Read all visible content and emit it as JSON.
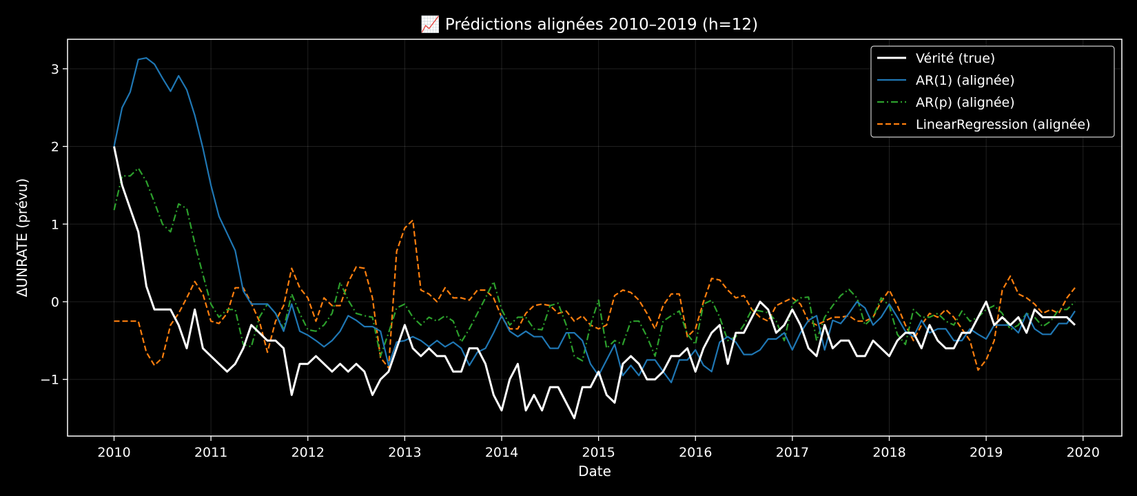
{
  "chart_data": {
    "type": "line",
    "title": "📈 Prédictions alignées 2010–2019 (h=12)",
    "xlabel": "Date",
    "ylabel": "ΔUNRATE (prévu)",
    "xlim": [
      2009.52,
      2020.4
    ],
    "ylim": [
      -1.73,
      3.38
    ],
    "x_ticks": [
      2010,
      2011,
      2012,
      2013,
      2014,
      2015,
      2016,
      2017,
      2018,
      2019,
      2020
    ],
    "y_ticks": [
      -1,
      0,
      1,
      2,
      3
    ],
    "y_tick_labels": [
      "−1",
      "0",
      "1",
      "2",
      "3"
    ],
    "grid": true,
    "legend_position": "top-right",
    "x_start": 2010.0,
    "x_step": 0.08333,
    "series": [
      {
        "name": "Vérité (true)",
        "color": "#ffffff",
        "style": "solid",
        "width": 3,
        "values": [
          2.0,
          1.5,
          1.2,
          0.9,
          0.2,
          -0.1,
          -0.1,
          -0.1,
          -0.3,
          -0.6,
          -0.1,
          -0.6,
          -0.7,
          -0.8,
          -0.9,
          -0.8,
          -0.6,
          -0.3,
          -0.4,
          -0.5,
          -0.5,
          -0.6,
          -1.2,
          -0.8,
          -0.8,
          -0.7,
          -0.8,
          -0.9,
          -0.8,
          -0.9,
          -0.8,
          -0.9,
          -1.2,
          -1.0,
          -0.9,
          -0.6,
          -0.3,
          -0.6,
          -0.7,
          -0.6,
          -0.7,
          -0.7,
          -0.9,
          -0.9,
          -0.6,
          -0.6,
          -0.8,
          -1.2,
          -1.4,
          -1.0,
          -0.8,
          -1.4,
          -1.2,
          -1.4,
          -1.1,
          -1.1,
          -1.3,
          -1.5,
          -1.1,
          -1.1,
          -0.9,
          -1.2,
          -1.3,
          -0.8,
          -0.7,
          -0.8,
          -1.0,
          -1.0,
          -0.9,
          -0.7,
          -0.7,
          -0.6,
          -0.9,
          -0.6,
          -0.4,
          -0.3,
          -0.8,
          -0.4,
          -0.4,
          -0.2,
          0.0,
          -0.1,
          -0.4,
          -0.3,
          -0.1,
          -0.3,
          -0.6,
          -0.7,
          -0.3,
          -0.6,
          -0.5,
          -0.5,
          -0.7,
          -0.7,
          -0.5,
          -0.6,
          -0.7,
          -0.5,
          -0.4,
          -0.4,
          -0.6,
          -0.3,
          -0.5,
          -0.6,
          -0.6,
          -0.4,
          -0.4,
          -0.2,
          0.0,
          -0.3,
          -0.2,
          -0.3,
          -0.2,
          -0.4,
          -0.1,
          -0.2,
          -0.2,
          -0.2,
          -0.2,
          -0.3
        ]
      },
      {
        "name": "AR(1) (alignée)",
        "color": "#1f77b4",
        "style": "solid",
        "width": 2.2,
        "values": [
          2.0,
          2.5,
          2.7,
          3.12,
          3.14,
          3.06,
          2.88,
          2.71,
          2.91,
          2.73,
          2.4,
          1.98,
          1.5,
          1.1,
          0.88,
          0.66,
          0.14,
          -0.03,
          -0.03,
          -0.03,
          -0.15,
          -0.38,
          -0.03,
          -0.38,
          -0.43,
          -0.5,
          -0.58,
          -0.5,
          -0.38,
          -0.18,
          -0.24,
          -0.32,
          -0.32,
          -0.38,
          -0.82,
          -0.52,
          -0.5,
          -0.45,
          -0.5,
          -0.58,
          -0.5,
          -0.58,
          -0.52,
          -0.6,
          -0.82,
          -0.65,
          -0.6,
          -0.4,
          -0.18,
          -0.38,
          -0.45,
          -0.38,
          -0.45,
          -0.45,
          -0.6,
          -0.6,
          -0.4,
          -0.4,
          -0.5,
          -0.8,
          -0.95,
          -0.75,
          -0.55,
          -0.95,
          -0.82,
          -0.95,
          -0.75,
          -0.75,
          -0.9,
          -1.04,
          -0.75,
          -0.75,
          -0.62,
          -0.82,
          -0.9,
          -0.52,
          -0.45,
          -0.52,
          -0.68,
          -0.68,
          -0.62,
          -0.48,
          -0.48,
          -0.4,
          -0.62,
          -0.4,
          -0.24,
          -0.18,
          -0.62,
          -0.24,
          -0.28,
          -0.15,
          0.0,
          -0.08,
          -0.3,
          -0.2,
          -0.03,
          -0.2,
          -0.38,
          -0.45,
          -0.24,
          -0.4,
          -0.35,
          -0.35,
          -0.5,
          -0.5,
          -0.35,
          -0.42,
          -0.48,
          -0.3,
          -0.3,
          -0.3,
          -0.4,
          -0.15,
          -0.35,
          -0.42,
          -0.42,
          -0.28,
          -0.28,
          -0.12
        ]
      },
      {
        "name": "AR(p) (alignée)",
        "color": "#2ca02c",
        "style": "dashdot",
        "width": 2.2,
        "values": [
          1.18,
          1.62,
          1.62,
          1.72,
          1.55,
          1.28,
          1.0,
          0.9,
          1.26,
          1.2,
          0.75,
          0.35,
          -0.03,
          -0.2,
          -0.1,
          -0.1,
          -0.55,
          -0.58,
          -0.2,
          -0.03,
          -0.15,
          -0.35,
          0.1,
          -0.15,
          -0.36,
          -0.38,
          -0.3,
          -0.15,
          0.25,
          0.02,
          -0.15,
          -0.18,
          -0.2,
          -0.7,
          -0.4,
          -0.08,
          -0.03,
          -0.2,
          -0.3,
          -0.2,
          -0.25,
          -0.18,
          -0.25,
          -0.52,
          -0.35,
          -0.15,
          0.05,
          0.26,
          -0.1,
          -0.3,
          -0.2,
          -0.2,
          -0.35,
          -0.36,
          -0.05,
          -0.02,
          -0.3,
          -0.7,
          -0.76,
          -0.3,
          0.02,
          -0.6,
          -0.5,
          -0.55,
          -0.25,
          -0.25,
          -0.45,
          -0.7,
          -0.25,
          -0.18,
          -0.12,
          -0.42,
          -0.55,
          -0.03,
          0.02,
          -0.2,
          -0.5,
          -0.45,
          -0.3,
          -0.1,
          -0.12,
          -0.14,
          -0.25,
          -0.5,
          -0.03,
          0.05,
          0.06,
          -0.5,
          -0.2,
          -0.05,
          0.08,
          0.16,
          0.05,
          -0.3,
          -0.2,
          0.05,
          -0.05,
          -0.42,
          -0.55,
          -0.1,
          -0.2,
          -0.2,
          -0.15,
          -0.25,
          -0.3,
          -0.12,
          -0.25,
          -0.2,
          -0.1,
          -0.05,
          -0.15,
          -0.36,
          -0.3,
          -0.15,
          -0.2,
          -0.32,
          -0.25,
          -0.1,
          -0.1,
          0.0
        ]
      },
      {
        "name": "LinearRegression (alignée)",
        "color": "#ff7f0e",
        "style": "dashed",
        "width": 2.2,
        "values": [
          -0.25,
          -0.25,
          -0.25,
          -0.25,
          -0.65,
          -0.82,
          -0.72,
          -0.3,
          -0.15,
          0.05,
          0.26,
          0.1,
          -0.25,
          -0.28,
          -0.15,
          0.18,
          0.18,
          -0.02,
          -0.25,
          -0.65,
          -0.25,
          -0.05,
          0.43,
          0.18,
          0.05,
          -0.25,
          0.05,
          -0.05,
          -0.05,
          0.25,
          0.45,
          0.43,
          0.05,
          -0.72,
          -0.85,
          0.65,
          0.95,
          1.05,
          0.15,
          0.1,
          0.0,
          0.18,
          0.05,
          0.05,
          0.02,
          0.15,
          0.15,
          0.05,
          -0.2,
          -0.35,
          -0.35,
          -0.15,
          -0.05,
          -0.03,
          -0.05,
          -0.15,
          -0.12,
          -0.25,
          -0.18,
          -0.3,
          -0.35,
          -0.3,
          0.08,
          0.15,
          0.12,
          0.02,
          -0.15,
          -0.35,
          -0.05,
          0.1,
          0.1,
          -0.45,
          -0.35,
          0.0,
          0.3,
          0.28,
          0.15,
          0.05,
          0.08,
          -0.1,
          -0.2,
          -0.25,
          -0.05,
          0.0,
          0.05,
          -0.03,
          -0.25,
          -0.3,
          -0.25,
          -0.2,
          -0.2,
          -0.18,
          -0.25,
          -0.25,
          -0.2,
          0.0,
          0.15,
          -0.05,
          -0.3,
          -0.5,
          -0.3,
          -0.15,
          -0.2,
          -0.1,
          -0.2,
          -0.35,
          -0.5,
          -0.88,
          -0.75,
          -0.5,
          0.15,
          0.33,
          0.1,
          0.05,
          -0.03,
          -0.15,
          -0.1,
          -0.15,
          0.05,
          0.18
        ]
      }
    ]
  }
}
